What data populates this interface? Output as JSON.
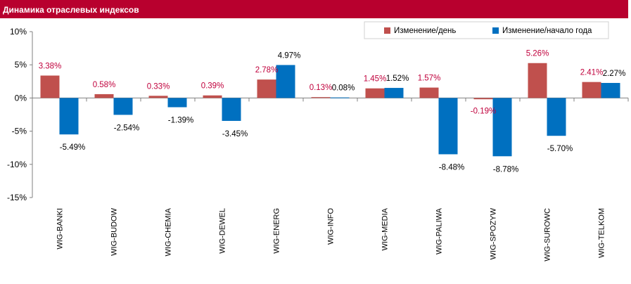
{
  "header": {
    "title": "Динамика отраслевых индексов"
  },
  "colors": {
    "header_bg": "#b8002e",
    "series_day": "#c0504d",
    "series_ytd": "#0070c0",
    "label_day": "#c0003c"
  },
  "chart_data": {
    "type": "bar",
    "title": "",
    "xlabel": "",
    "ylabel": "",
    "ylim": [
      -15,
      10
    ],
    "yticks": [
      "10%",
      "5%",
      "0%",
      "-5%",
      "-10%",
      "-15%"
    ],
    "grid": false,
    "legend_position": "top-right",
    "categories": [
      "WIG-BANKI",
      "WIG-BUDOW",
      "WIG-CHEMIA",
      "WIG-DEWEL",
      "WIG-ENERG",
      "WIG-INFO",
      "WIG-MEDIA",
      "WIG-PALIWA",
      "WIG-SPOZYW",
      "WIG-SUROWC",
      "WIG-TELKOM"
    ],
    "series": [
      {
        "name": "Изменение/день",
        "values": [
          3.38,
          0.58,
          0.33,
          0.39,
          2.78,
          0.13,
          1.45,
          1.57,
          -0.19,
          5.26,
          2.41
        ],
        "labels": [
          "3.38%",
          "0.58%",
          "0.33%",
          "0.39%",
          "2.78%",
          "0.13%",
          "1.45%",
          "1.57%",
          "-0.19%",
          "5.26%",
          "2.41%"
        ]
      },
      {
        "name": "Изменение/начало года",
        "values": [
          -5.49,
          -2.54,
          -1.39,
          -3.45,
          4.97,
          0.08,
          1.52,
          -8.48,
          -8.78,
          -5.7,
          2.27
        ],
        "labels": [
          "-5.49%",
          "-2.54%",
          "-1.39%",
          "-3.45%",
          "4.97%",
          "0.08%",
          "1.52%",
          "-8.48%",
          "-8.78%",
          "-5.70%",
          "2.27%"
        ]
      }
    ]
  }
}
